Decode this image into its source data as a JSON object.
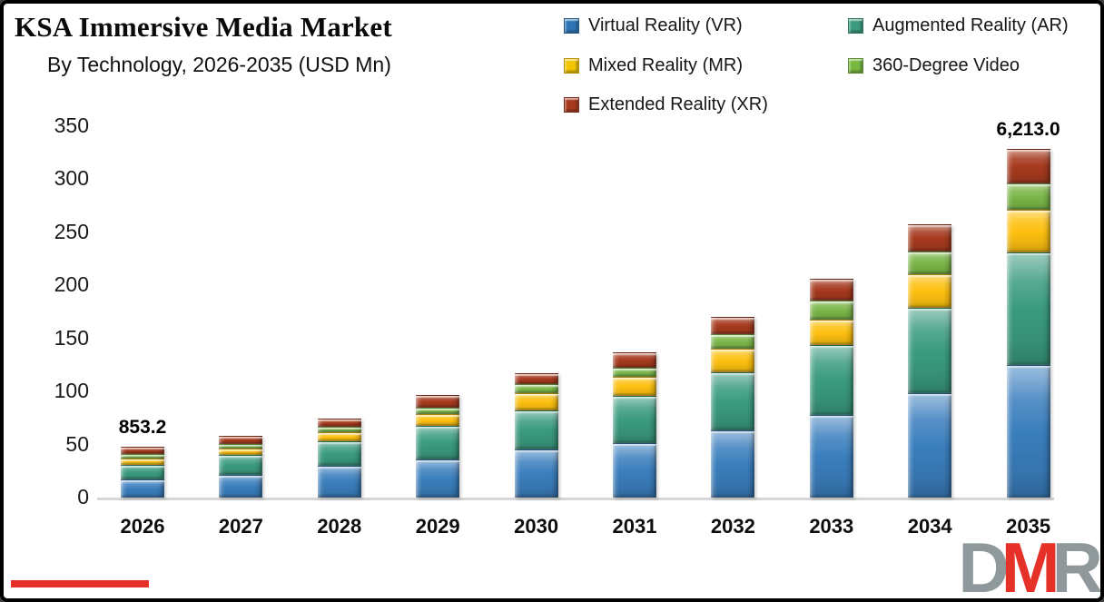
{
  "header": {
    "title": "KSA Immersive Media Market",
    "subtitle": "By Technology, 2026-2035 (USD Mn)"
  },
  "legend": {
    "items": [
      {
        "label": "Virtual Reality (VR)",
        "color": "#2e75b6",
        "col": 0,
        "row": 0
      },
      {
        "label": "Augmented Reality (AR)",
        "color": "#3a9b7f",
        "col": 1,
        "row": 0
      },
      {
        "label": "Mixed Reality (MR)",
        "color": "#f2c400",
        "col": 0,
        "row": 1
      },
      {
        "label": "360-Degree Video",
        "color": "#76b83f",
        "col": 1,
        "row": 1
      },
      {
        "label": "Extended Reality (XR)",
        "color": "#a63a1e",
        "col": 0,
        "row": 2
      }
    ]
  },
  "chart_data": {
    "type": "bar",
    "stacked": true,
    "title": "KSA Immersive Media Market",
    "subtitle": "By Technology, 2026-2035 (USD Mn)",
    "categories": [
      "2026",
      "2027",
      "2028",
      "2029",
      "2030",
      "2031",
      "2032",
      "2033",
      "2034",
      "2035"
    ],
    "series": [
      {
        "name": "Virtual Reality (VR)",
        "color": "#3a7ebd",
        "values": [
          17.5,
          21.5,
          30,
          36,
          45,
          51,
          63,
          78,
          98,
          125
        ]
      },
      {
        "name": "Augmented Reality (AR)",
        "color": "#3a9b7f",
        "values": [
          13.5,
          19,
          23,
          31.5,
          37,
          45,
          55,
          66,
          81,
          106
        ]
      },
      {
        "name": "Mixed Reality (MR)",
        "color": "#fdc010",
        "values": [
          5.5,
          6,
          8.5,
          11.5,
          16.5,
          17.5,
          22,
          24,
          31.5,
          40
        ]
      },
      {
        "name": "360-Degree Video",
        "color": "#7ab648",
        "values": [
          4.5,
          4,
          5.5,
          6,
          8.5,
          8.5,
          14,
          18,
          21,
          25
        ]
      },
      {
        "name": "Extended Reality (XR)",
        "color": "#a63a1e",
        "values": [
          6.5,
          7.5,
          7.5,
          12,
          10.5,
          14.5,
          16.5,
          20.5,
          26,
          33
        ]
      }
    ],
    "xlabel": "",
    "ylabel": "",
    "ylim": [
      0,
      350
    ],
    "yticks": [
      0,
      50,
      100,
      150,
      200,
      250,
      300,
      350
    ],
    "grid": false,
    "legend_position": "top-right",
    "annotations": [
      {
        "category": "2026",
        "text": "853.2"
      },
      {
        "category": "2035",
        "text": "6,213.0"
      }
    ]
  },
  "logo": {
    "letters": [
      {
        "char": "D",
        "color": "#8f999c"
      },
      {
        "char": "M",
        "color": "#e63129"
      },
      {
        "char": "R",
        "color": "#8f999c"
      }
    ],
    "bar_color": "#e63129"
  }
}
